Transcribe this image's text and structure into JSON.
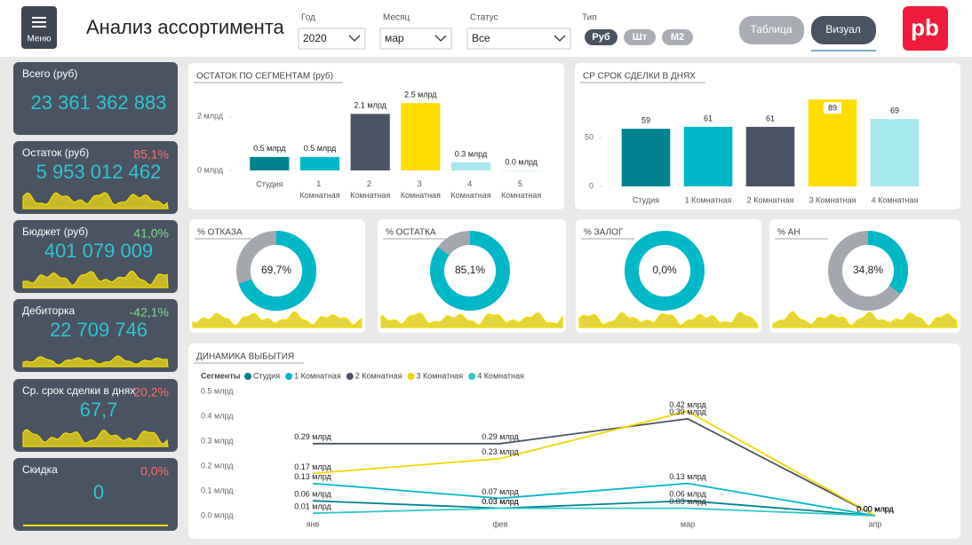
{
  "header": {
    "menu_label": "Меню",
    "title": "Анализ ассортимента",
    "filters": [
      {
        "label": "Год",
        "value": "2020"
      },
      {
        "label": "Месяц",
        "value": "мар"
      },
      {
        "label": "Статус",
        "value": "Все"
      }
    ],
    "type_label": "Тип",
    "type_options": [
      "Руб",
      "Шт",
      "M2"
    ],
    "view_buttons": [
      "Таблица",
      "Визуал"
    ],
    "logo": "pb"
  },
  "kpis": [
    {
      "title": "Всего (руб)",
      "value": "23 361 362 883"
    },
    {
      "title": "Остаток (руб)",
      "value": "5 953 012 462",
      "change": "85,1%",
      "change_color": "#ff6b6b"
    },
    {
      "title": "Бюджет (руб)",
      "value": "401 079 009",
      "change": "41,0%",
      "change_color": "#7ed98f"
    },
    {
      "title": "Дебиторка",
      "value": "22 709 746",
      "change": "-42,1%",
      "change_color": "#7ed98f"
    },
    {
      "title": "Ср. срок сделки в днях",
      "value": "67,7",
      "change": "20,2%",
      "change_color": "#ff6b6b"
    },
    {
      "title": "Скидка",
      "value": "0",
      "change": "0,0%",
      "change_color": "#ff6b6b"
    }
  ],
  "chart_data": [
    {
      "type": "bar",
      "title": "ОСТАТОК ПО СЕГМЕНТАМ (руб)",
      "categories": [
        "Студия",
        "1 Комнатная",
        "2 Комнатная",
        "3 Комнатная",
        "4 Комнатная",
        "5 Комнатная"
      ],
      "values": [
        0.5,
        0.5,
        2.1,
        2.5,
        0.3,
        0.0
      ],
      "value_labels": [
        "0.5 млрд",
        "0.5 млрд",
        "2.1 млрд",
        "2.5 млрд",
        "0.3 млрд",
        "0.0 млрд"
      ],
      "colors": [
        "#00838f",
        "#00b8c8",
        "#4a5466",
        "#ffdd00",
        "#a6e8ee",
        "#c9f1f4"
      ],
      "ylim": [
        0,
        3
      ],
      "yticks": [
        {
          "value": 0,
          "label": "0 млрд"
        },
        {
          "value": 2,
          "label": "2 млрд"
        }
      ]
    },
    {
      "type": "bar",
      "title": "СР СРОК СДЕЛКИ В ДНЯХ",
      "categories": [
        "Студия",
        "1 Комнатная",
        "2 Комнатная",
        "3 Комнатная",
        "4 Комнатная"
      ],
      "values": [
        59,
        61,
        61,
        89,
        69
      ],
      "colors": [
        "#00838f",
        "#00b8c8",
        "#4a5466",
        "#ffdd00",
        "#a6e8ee"
      ],
      "ylim": [
        0,
        100
      ],
      "yticks": [
        0,
        50
      ]
    },
    {
      "type": "donut",
      "title": "% ОТКАЗА",
      "value": 69.7,
      "value_label": "69,7%",
      "color": "#00b8c8",
      "rest_color": "#a3a7ae"
    },
    {
      "type": "donut",
      "title": "% ОСТАТКА",
      "value": 85.1,
      "value_label": "85,1%",
      "color": "#00b8c8",
      "rest_color": "#a3a7ae"
    },
    {
      "type": "donut",
      "title": "% ЗАЛОГ",
      "value": 0.0,
      "value_label": "0,0%",
      "color": "#a3a7ae",
      "rest_color": "#00b8c8"
    },
    {
      "type": "donut",
      "title": "% АН",
      "value": 34.8,
      "value_label": "34,8%",
      "color": "#00b8c8",
      "rest_color": "#a3a7ae"
    },
    {
      "type": "line",
      "title": "ДИНАМИКА ВЫБЫТИЯ",
      "legend_title": "Сегменты",
      "categories": [
        "янв",
        "фев",
        "мар",
        "апр"
      ],
      "ylim": [
        0,
        0.5
      ],
      "yticks": [
        {
          "value": 0,
          "label": "0.0 млрд"
        },
        {
          "value": 0.1,
          "label": "0.1 млрд"
        },
        {
          "value": 0.2,
          "label": "0.2 млрд"
        },
        {
          "value": 0.3,
          "label": "0.3 млрд"
        },
        {
          "value": 0.4,
          "label": "0.4 млрд"
        },
        {
          "value": 0.5,
          "label": "0.5 млрд"
        }
      ],
      "series": [
        {
          "name": "Студия",
          "color": "#00838f",
          "values": [
            0.06,
            0.03,
            0.06,
            0.0
          ],
          "value_labels": [
            "0.06 млрд",
            "0.03 млрд",
            "0.06 млрд",
            "0.00 млрд"
          ]
        },
        {
          "name": "1 Комнатная",
          "color": "#00b8c8",
          "values": [
            0.13,
            0.07,
            0.13,
            0.0
          ],
          "value_labels": [
            "0.13 млрд",
            "0.07 млрд",
            "0.13 млрд",
            "0.00 млрд"
          ]
        },
        {
          "name": "2 Комнатная",
          "color": "#4a5466",
          "values": [
            0.29,
            0.29,
            0.39,
            0.0
          ],
          "value_labels": [
            "0.29 млрд",
            "0.29 млрд",
            "0.39 млрд",
            "0.00 млрд"
          ]
        },
        {
          "name": "3 Комнатная",
          "color": "#f2d600",
          "values": [
            0.17,
            0.23,
            0.42,
            0.0
          ],
          "value_labels": [
            "0.17 млрд",
            "0.23 млрд",
            "0.42 млрд",
            "0.00 млрд"
          ]
        },
        {
          "name": "4 Комнатная",
          "color": "#2ec9c9",
          "values": [
            0.01,
            0.03,
            0.03,
            0.0
          ],
          "value_labels": [
            "0.01 млрд",
            "0.03 млрд",
            "0.03 млрд",
            "0.00 млрд"
          ]
        }
      ]
    }
  ]
}
